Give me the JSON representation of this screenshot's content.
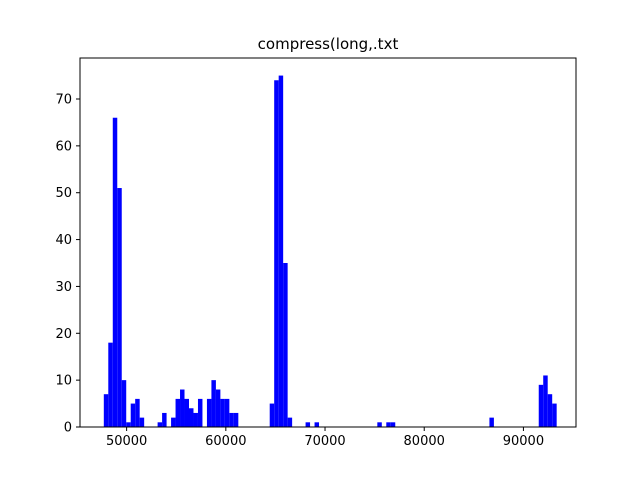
{
  "chart_data": {
    "type": "bar",
    "title": "compress(long,.txt",
    "xlabel": "",
    "ylabel": "",
    "xlim": [
      45300,
      95300
    ],
    "ylim": [
      0,
      78.75
    ],
    "xticks": [
      50000,
      60000,
      70000,
      80000,
      90000
    ],
    "xtick_labels": [
      "50000",
      "60000",
      "70000",
      "80000",
      "90000"
    ],
    "yticks": [
      0,
      10,
      20,
      30,
      40,
      50,
      60,
      70
    ],
    "ytick_labels": [
      "0",
      "10",
      "20",
      "30",
      "40",
      "50",
      "60",
      "70"
    ],
    "grid": false,
    "bar_color": "#0000ff",
    "bin_width": 452,
    "bins": [
      {
        "x": 47700,
        "y": 7
      },
      {
        "x": 48152,
        "y": 18
      },
      {
        "x": 48604,
        "y": 66
      },
      {
        "x": 49056,
        "y": 51
      },
      {
        "x": 49508,
        "y": 10
      },
      {
        "x": 49960,
        "y": 1
      },
      {
        "x": 50412,
        "y": 5
      },
      {
        "x": 50864,
        "y": 6
      },
      {
        "x": 51316,
        "y": 2
      },
      {
        "x": 53124,
        "y": 1
      },
      {
        "x": 53576,
        "y": 3
      },
      {
        "x": 54480,
        "y": 2
      },
      {
        "x": 54932,
        "y": 6
      },
      {
        "x": 55384,
        "y": 8
      },
      {
        "x": 55836,
        "y": 6
      },
      {
        "x": 56288,
        "y": 4
      },
      {
        "x": 56740,
        "y": 3
      },
      {
        "x": 57192,
        "y": 6
      },
      {
        "x": 58096,
        "y": 6
      },
      {
        "x": 58548,
        "y": 10
      },
      {
        "x": 59000,
        "y": 8
      },
      {
        "x": 59452,
        "y": 6
      },
      {
        "x": 59904,
        "y": 6
      },
      {
        "x": 60356,
        "y": 3
      },
      {
        "x": 60808,
        "y": 3
      },
      {
        "x": 64424,
        "y": 5
      },
      {
        "x": 64876,
        "y": 74
      },
      {
        "x": 65328,
        "y": 75
      },
      {
        "x": 65780,
        "y": 35
      },
      {
        "x": 66232,
        "y": 2
      },
      {
        "x": 68040,
        "y": 1
      },
      {
        "x": 68944,
        "y": 1
      },
      {
        "x": 75272,
        "y": 1
      },
      {
        "x": 76176,
        "y": 1
      },
      {
        "x": 76628,
        "y": 1
      },
      {
        "x": 86572,
        "y": 2
      },
      {
        "x": 91544,
        "y": 9
      },
      {
        "x": 91996,
        "y": 11
      },
      {
        "x": 92448,
        "y": 7
      },
      {
        "x": 92900,
        "y": 5
      }
    ]
  }
}
